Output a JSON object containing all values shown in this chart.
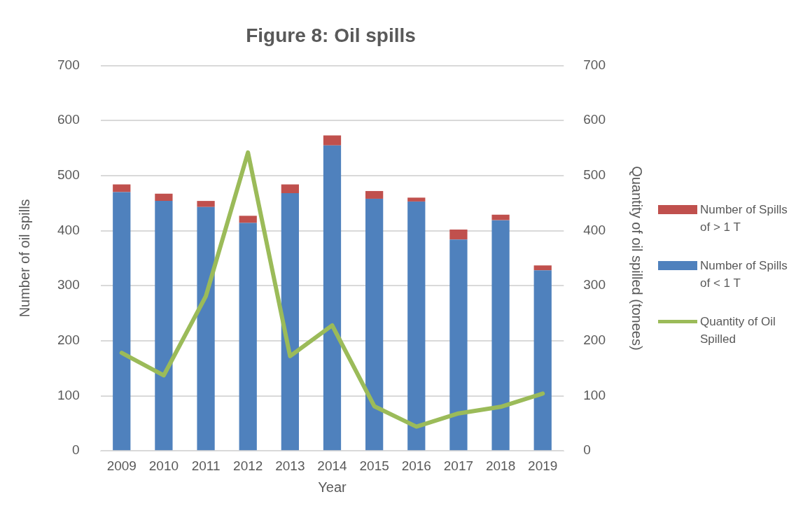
{
  "chart_data": {
    "type": "bar",
    "title": "Figure 8: Oil spills",
    "xlabel": "Year",
    "ylabel": "Number of oil spills",
    "y2label": "Quantity of oil spilled (tonees)",
    "categories": [
      "2009",
      "2010",
      "2011",
      "2012",
      "2013",
      "2014",
      "2015",
      "2016",
      "2017",
      "2018",
      "2019"
    ],
    "stacked": true,
    "series": [
      {
        "name": "Number of Spills of < 1 T",
        "color": "#4f81bd",
        "values": [
          470,
          454,
          443,
          414,
          468,
          555,
          458,
          453,
          384,
          419,
          328
        ]
      },
      {
        "name": "Number of Spills of > 1 T",
        "color": "#c0504d",
        "values": [
          14,
          13,
          11,
          13,
          16,
          18,
          14,
          7,
          18,
          10,
          9
        ]
      },
      {
        "name": "Quantity of Oil Spilled",
        "type": "line",
        "axis": "y2",
        "color": "#9bbb59",
        "marker": "none",
        "values": [
          178,
          137,
          281,
          542,
          172,
          228,
          81,
          44,
          68,
          80,
          104
        ]
      }
    ],
    "ylim": [
      0,
      700
    ],
    "yticks": [
      0,
      100,
      200,
      300,
      400,
      500,
      600,
      700
    ],
    "y2lim": [
      0,
      700
    ],
    "y2ticks": [
      0,
      100,
      200,
      300,
      400,
      500,
      600,
      700
    ],
    "grid": "y",
    "legend": "right"
  }
}
